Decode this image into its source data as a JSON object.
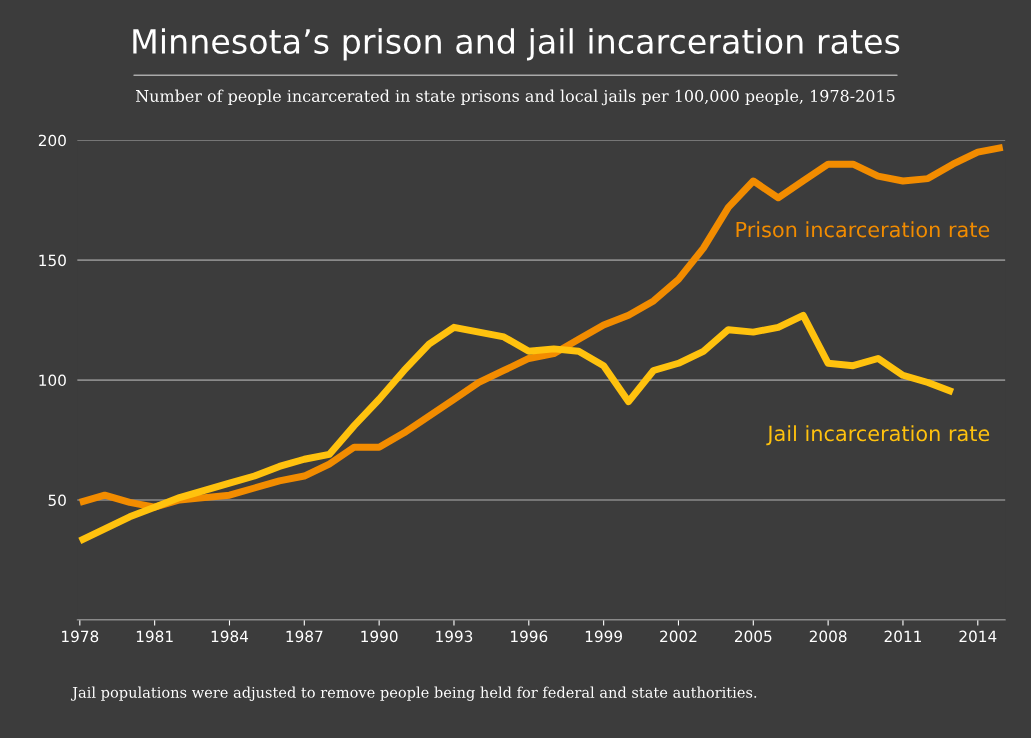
{
  "chart_data": {
    "type": "line",
    "title": "Minnesota’s prison and jail incarceration rates",
    "subtitle": "Number of people incarcerated in state prisons and local jails per 100,000 people, 1978-2015",
    "x": [
      1978,
      1979,
      1980,
      1981,
      1982,
      1983,
      1984,
      1985,
      1986,
      1987,
      1988,
      1989,
      1990,
      1991,
      1992,
      1993,
      1994,
      1995,
      1996,
      1997,
      1998,
      1999,
      2000,
      2001,
      2002,
      2003,
      2004,
      2005,
      2006,
      2007,
      2008,
      2009,
      2010,
      2011,
      2012,
      2013,
      2014,
      2015
    ],
    "series": [
      {
        "name": "Prison incarceration rate",
        "color": "#f28c00",
        "values": [
          49,
          52,
          49,
          47,
          50,
          51,
          52,
          55,
          58,
          60,
          65,
          72,
          72,
          78,
          85,
          92,
          99,
          104,
          109,
          111,
          117,
          123,
          127,
          133,
          142,
          155,
          172,
          183,
          176,
          183,
          190,
          190,
          185,
          183,
          184,
          190,
          195,
          197
        ]
      },
      {
        "name": "Jail incarceration rate",
        "color": "#ffc20e",
        "values": [
          33,
          38,
          43,
          47,
          51,
          54,
          57,
          60,
          64,
          67,
          69,
          81,
          92,
          104,
          115,
          122,
          120,
          118,
          112,
          113,
          112,
          106,
          91,
          104,
          107,
          112,
          121,
          120,
          122,
          127,
          107,
          106,
          109,
          102,
          99,
          95,
          null,
          null
        ]
      }
    ],
    "xlim": [
      1977.9,
      2015.1
    ],
    "xticks": [
      1978,
      1981,
      1984,
      1987,
      1990,
      1993,
      1996,
      1999,
      2002,
      2005,
      2008,
      2011,
      2014
    ],
    "ylim": [
      0,
      200
    ],
    "yticks": [
      {
        "value": 0,
        "label": null
      },
      50,
      100,
      150,
      200
    ],
    "grid": "y",
    "legend": false,
    "marker": "none",
    "line_style": "solid",
    "annotations": [
      "Jail populations were adjusted to remove people being held for federal and state authorities."
    ]
  }
}
